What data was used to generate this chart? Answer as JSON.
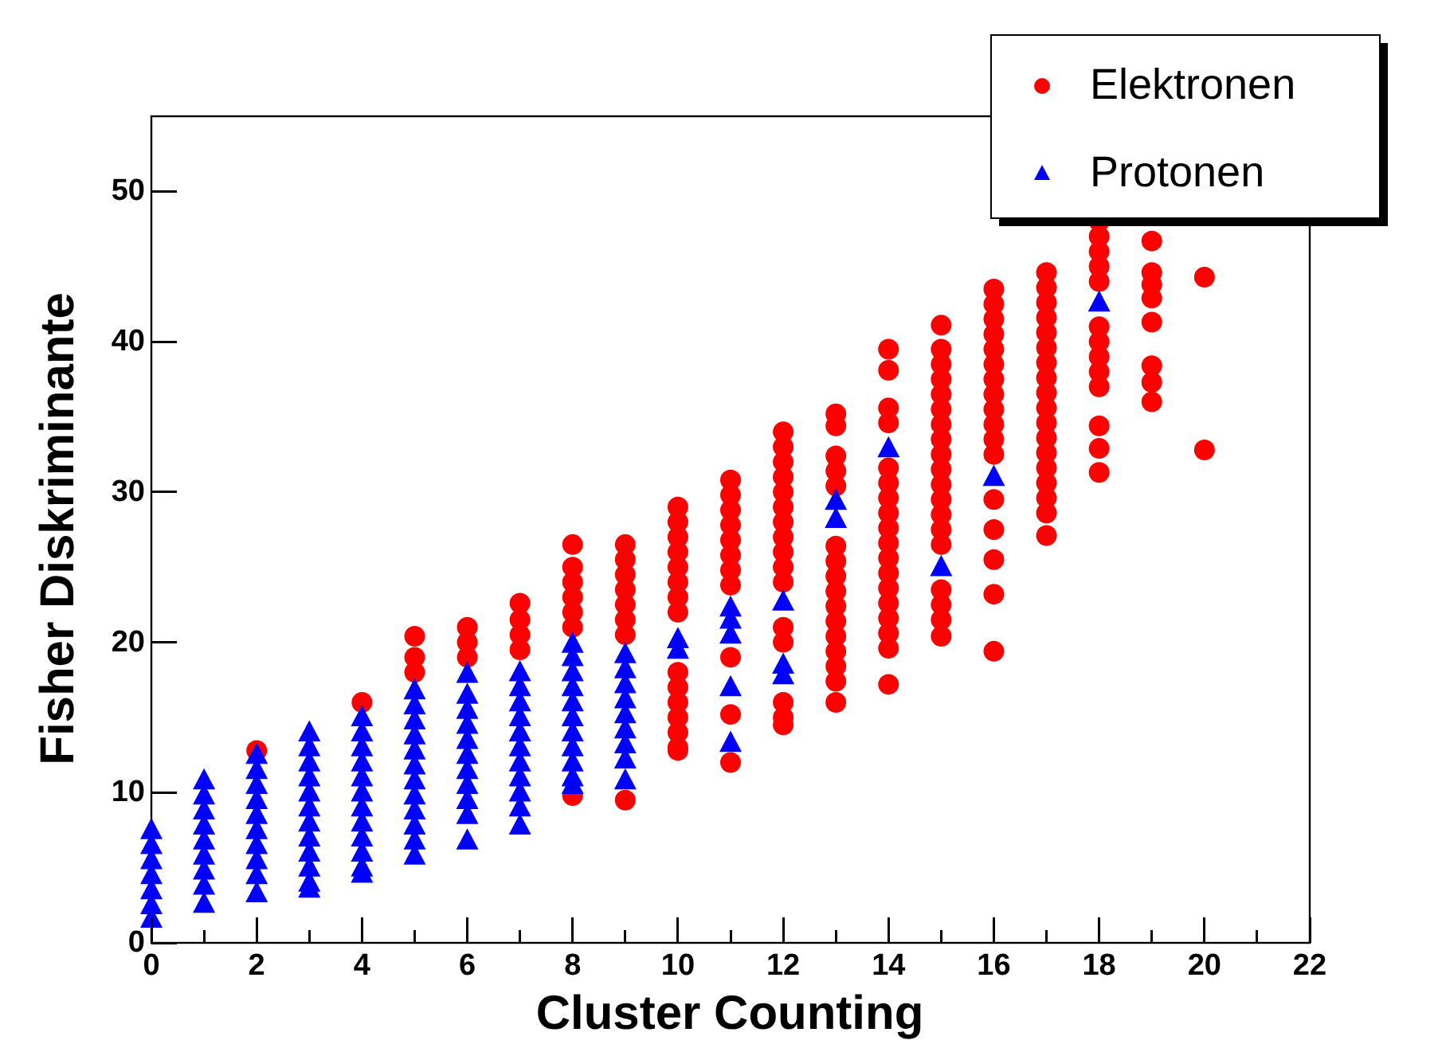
{
  "chart_data": {
    "type": "scatter",
    "xlabel": "Cluster Counting",
    "ylabel": "Fisher Diskriminante",
    "xlim": [
      0,
      22
    ],
    "ylim": [
      0,
      55
    ],
    "xticks": [
      0,
      {
        "value": 1,
        "label": null
      },
      2,
      {
        "value": 3,
        "label": null
      },
      4,
      {
        "value": 5,
        "label": null
      },
      6,
      {
        "value": 7,
        "label": null
      },
      8,
      {
        "value": 9,
        "label": null
      },
      10,
      {
        "value": 11,
        "label": null
      },
      12,
      {
        "value": 13,
        "label": null
      },
      14,
      {
        "value": 15,
        "label": null
      },
      16,
      {
        "value": 17,
        "label": null
      },
      18,
      {
        "value": 19,
        "label": null
      },
      20,
      {
        "value": 21,
        "label": null
      },
      22
    ],
    "yticks": [
      0,
      10,
      20,
      30,
      40,
      50
    ],
    "grid": false,
    "legend": "top right",
    "series": [
      {
        "name": "Elektronen",
        "color": "#ff0000",
        "marker": "circle",
        "x": [
          2,
          4,
          5,
          5,
          5,
          6,
          6,
          6,
          7,
          7,
          7,
          7,
          8,
          8,
          8,
          8,
          8,
          8,
          8,
          9,
          9,
          9,
          9,
          9,
          9,
          9,
          9,
          10,
          10,
          10,
          10,
          10,
          10,
          10,
          10,
          10,
          10,
          10,
          10,
          10,
          10,
          10,
          11,
          11,
          11,
          11,
          11,
          11,
          11,
          11,
          11,
          11,
          11,
          12,
          12,
          12,
          12,
          12,
          12,
          12,
          12,
          12,
          12,
          12,
          12,
          12,
          12,
          12,
          12,
          13,
          13,
          13,
          13,
          13,
          13,
          13,
          13,
          13,
          13,
          13,
          13,
          13,
          13,
          13,
          13,
          14,
          14,
          14,
          14,
          14,
          14,
          14,
          14,
          14,
          14,
          14,
          14,
          14,
          14,
          14,
          14,
          14,
          14,
          15,
          15,
          15,
          15,
          15,
          15,
          15,
          15,
          15,
          15,
          15,
          15,
          15,
          15,
          15,
          15,
          15,
          15,
          15,
          16,
          16,
          16,
          16,
          16,
          16,
          16,
          16,
          16,
          16,
          16,
          16,
          16,
          16,
          16,
          16,
          16,
          17,
          17,
          17,
          17,
          17,
          17,
          17,
          17,
          17,
          17,
          17,
          17,
          17,
          17,
          17,
          17,
          17,
          17,
          18,
          18,
          18,
          18,
          18,
          18,
          18,
          18,
          18,
          18,
          18,
          18,
          18,
          19,
          19,
          19,
          19,
          19,
          19,
          19,
          19,
          20,
          20
        ],
        "values": [
          12.8,
          16.0,
          20.4,
          19.0,
          18.0,
          21.0,
          20.0,
          19.0,
          22.6,
          21.5,
          20.5,
          19.5,
          26.5,
          25.0,
          24.0,
          23.0,
          22.0,
          21.0,
          9.8,
          26.5,
          25.5,
          24.5,
          23.5,
          22.5,
          21.5,
          20.5,
          9.5,
          29.0,
          28.0,
          27.0,
          26.0,
          25.0,
          24.0,
          23.0,
          22.0,
          18.0,
          17.0,
          16.0,
          15.0,
          14.0,
          13.0,
          12.8,
          30.8,
          29.8,
          28.8,
          27.8,
          26.8,
          25.8,
          24.8,
          23.8,
          19.0,
          15.2,
          12.0,
          34.0,
          33.0,
          32.0,
          31.0,
          30.0,
          29.0,
          28.0,
          27.0,
          26.0,
          25.0,
          24.0,
          21.0,
          20.0,
          16.0,
          15.0,
          14.5,
          35.2,
          34.4,
          32.4,
          31.4,
          30.4,
          26.4,
          25.4,
          24.4,
          23.4,
          22.4,
          21.4,
          20.4,
          19.4,
          18.4,
          17.4,
          16.0,
          39.5,
          38.1,
          35.6,
          34.6,
          31.6,
          30.6,
          29.6,
          28.6,
          27.6,
          26.6,
          25.6,
          24.6,
          23.6,
          22.6,
          21.6,
          20.6,
          19.6,
          17.2,
          41.1,
          39.5,
          38.5,
          37.5,
          36.5,
          35.5,
          34.5,
          33.5,
          32.5,
          31.5,
          30.5,
          29.5,
          28.5,
          27.5,
          26.5,
          23.5,
          22.5,
          21.5,
          20.4,
          43.5,
          42.5,
          41.5,
          40.5,
          39.5,
          38.5,
          37.5,
          36.5,
          35.5,
          34.5,
          33.5,
          32.5,
          29.5,
          27.5,
          25.5,
          23.2,
          19.4,
          44.6,
          43.6,
          42.6,
          41.6,
          40.6,
          39.6,
          38.6,
          37.6,
          36.6,
          35.6,
          34.6,
          33.6,
          32.6,
          31.6,
          30.6,
          29.6,
          28.6,
          27.1,
          48.0,
          47.0,
          46.0,
          45.0,
          44.0,
          41.0,
          40.0,
          39.0,
          38.0,
          37.0,
          34.4,
          32.9,
          31.3,
          46.7,
          44.6,
          43.8,
          42.9,
          41.3,
          38.4,
          37.3,
          36.0,
          44.3,
          32.8
        ]
      },
      {
        "name": "Protonen",
        "color": "#0000ff",
        "marker": "triangle",
        "x": [
          0,
          0,
          0,
          0,
          0,
          0,
          0,
          1,
          1,
          1,
          1,
          1,
          1,
          1,
          1,
          1,
          2,
          2,
          2,
          2,
          2,
          2,
          2,
          2,
          2,
          2,
          3,
          3,
          3,
          3,
          3,
          3,
          3,
          3,
          3,
          3,
          3,
          3,
          4,
          4,
          4,
          4,
          4,
          4,
          4,
          4,
          4,
          4,
          4,
          4,
          5,
          5,
          5,
          5,
          5,
          5,
          5,
          5,
          5,
          5,
          5,
          5,
          6,
          6,
          6,
          6,
          6,
          6,
          6,
          6,
          6,
          6,
          6,
          7,
          7,
          7,
          7,
          7,
          7,
          7,
          7,
          7,
          7,
          7,
          8,
          8,
          8,
          8,
          8,
          8,
          8,
          8,
          8,
          8,
          8,
          9,
          9,
          9,
          9,
          9,
          9,
          9,
          9,
          9,
          10,
          10,
          11,
          11,
          11,
          11,
          11,
          12,
          12,
          12,
          13,
          13,
          14,
          15,
          16,
          18
        ],
        "values": [
          7.5,
          6.5,
          5.5,
          4.5,
          3.5,
          2.5,
          1.6,
          10.8,
          9.8,
          8.8,
          7.8,
          6.8,
          5.8,
          4.8,
          3.8,
          2.6,
          12.5,
          11.5,
          10.5,
          9.5,
          8.5,
          7.5,
          6.5,
          5.5,
          4.5,
          3.3,
          14.0,
          13.0,
          12.0,
          11.0,
          10.0,
          9.0,
          8.0,
          7.0,
          6.0,
          5.0,
          4.0,
          3.6,
          15.0,
          14.0,
          13.0,
          12.0,
          11.0,
          10.0,
          9.0,
          8.0,
          7.0,
          6.0,
          5.0,
          4.6,
          16.8,
          15.8,
          14.8,
          13.8,
          12.8,
          11.8,
          10.8,
          9.8,
          8.8,
          7.8,
          6.8,
          5.8,
          17.9,
          16.5,
          15.5,
          14.5,
          13.5,
          12.5,
          11.5,
          10.5,
          9.5,
          8.5,
          6.8,
          18.0,
          17.0,
          16.0,
          15.0,
          14.0,
          13.0,
          12.0,
          11.0,
          10.0,
          9.0,
          7.8,
          19.9,
          19.0,
          18.0,
          17.0,
          16.0,
          15.0,
          14.0,
          13.0,
          12.0,
          11.0,
          10.5,
          19.2,
          18.2,
          17.2,
          16.2,
          15.2,
          14.2,
          13.2,
          12.2,
          10.8,
          20.2,
          19.5,
          22.3,
          21.5,
          20.5,
          17.0,
          13.3,
          22.7,
          18.5,
          17.8,
          29.4,
          28.2,
          32.9,
          25.0,
          31.0,
          42.6
        ]
      }
    ]
  }
}
